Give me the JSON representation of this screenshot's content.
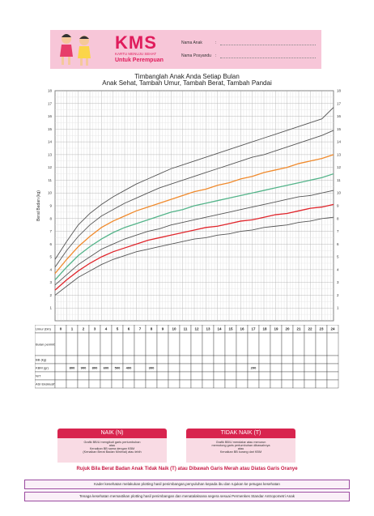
{
  "header": {
    "logo": "KMS",
    "logo_sub": "KARTU MENUJU SEHAT",
    "for_label": "Untuk Perempuan",
    "name_label": "Nama Anak",
    "parent_label": "Nama Posyandu",
    "colon": ":"
  },
  "titles": {
    "line1": "Timbanglah Anak Anda Setiap Bulan",
    "line2": "Anak Sehat, Tambah Umur, Tambah Berat, Tambah Pandai"
  },
  "chart_data": {
    "type": "line",
    "ylabel": "Berat Badan (kg)",
    "ylim": [
      0,
      18
    ],
    "yticks": [
      1,
      2,
      3,
      4,
      5,
      6,
      7,
      8,
      9,
      10,
      11,
      12,
      13,
      14,
      15,
      16,
      17,
      18
    ],
    "x": [
      0,
      1,
      2,
      3,
      4,
      5,
      6,
      7,
      8,
      9,
      10,
      11,
      12,
      13,
      14,
      15,
      16,
      17,
      18,
      19,
      20,
      21,
      22,
      23,
      24
    ],
    "grid": true,
    "series": [
      {
        "color": "#555555",
        "values": [
          4.8,
          6.2,
          7.5,
          8.4,
          9.1,
          9.7,
          10.2,
          10.7,
          11.1,
          11.5,
          11.9,
          12.2,
          12.5,
          12.8,
          13.1,
          13.4,
          13.7,
          14.0,
          14.3,
          14.6,
          14.9,
          15.2,
          15.5,
          15.8,
          16.7
        ]
      },
      {
        "color": "#555555",
        "values": [
          4.2,
          5.5,
          6.6,
          7.5,
          8.2,
          8.7,
          9.2,
          9.6,
          10.0,
          10.4,
          10.7,
          11.0,
          11.3,
          11.6,
          11.9,
          12.2,
          12.5,
          12.8,
          13.0,
          13.3,
          13.6,
          13.9,
          14.2,
          14.5,
          14.9
        ]
      },
      {
        "color": "#f08a2c",
        "values": [
          3.7,
          4.8,
          5.8,
          6.6,
          7.3,
          7.8,
          8.2,
          8.6,
          8.9,
          9.2,
          9.5,
          9.8,
          10.1,
          10.3,
          10.6,
          10.8,
          11.1,
          11.3,
          11.6,
          11.8,
          12.0,
          12.3,
          12.5,
          12.7,
          13.0
        ]
      },
      {
        "color": "#54b48a",
        "values": [
          3.2,
          4.2,
          5.1,
          5.8,
          6.4,
          6.9,
          7.3,
          7.6,
          7.9,
          8.2,
          8.5,
          8.7,
          9.0,
          9.2,
          9.4,
          9.6,
          9.8,
          10.0,
          10.2,
          10.4,
          10.6,
          10.8,
          11.0,
          11.2,
          11.5
        ]
      },
      {
        "color": "#555555",
        "values": [
          2.8,
          3.6,
          4.4,
          5.0,
          5.6,
          6.0,
          6.4,
          6.7,
          7.0,
          7.2,
          7.5,
          7.7,
          7.9,
          8.1,
          8.3,
          8.5,
          8.7,
          8.9,
          9.1,
          9.3,
          9.5,
          9.7,
          9.8,
          10.0,
          10.2
        ]
      },
      {
        "color": "#e0262c",
        "values": [
          2.4,
          3.2,
          3.9,
          4.5,
          5.0,
          5.4,
          5.7,
          6.0,
          6.3,
          6.5,
          6.7,
          6.9,
          7.1,
          7.3,
          7.4,
          7.6,
          7.8,
          7.9,
          8.1,
          8.3,
          8.4,
          8.6,
          8.8,
          8.9,
          9.1
        ]
      },
      {
        "color": "#555555",
        "values": [
          2.0,
          2.7,
          3.4,
          3.9,
          4.4,
          4.8,
          5.1,
          5.4,
          5.6,
          5.8,
          6.0,
          6.2,
          6.4,
          6.5,
          6.7,
          6.8,
          7.0,
          7.1,
          7.3,
          7.4,
          7.5,
          7.7,
          7.8,
          8.0,
          8.1
        ]
      }
    ]
  },
  "table": {
    "row_umur": "Umur (bln)",
    "row_bulan": "Bulan penimbangan",
    "row_bb": "BB (kg)",
    "row_kbm": "KBM (gr)",
    "row_nt": "N/T",
    "row_asi": "ASI Eksklusif",
    "months": [
      "0",
      "1",
      "2",
      "3",
      "4",
      "5",
      "6",
      "7",
      "8",
      "9",
      "10",
      "11",
      "12",
      "13",
      "14",
      "15",
      "16",
      "17",
      "18",
      "19",
      "20",
      "21",
      "22",
      "23",
      "24"
    ],
    "kbm": [
      "800",
      "900",
      "800",
      "600",
      "500",
      "400",
      "300",
      "200"
    ]
  },
  "naik": {
    "title": "NAIK (N)",
    "l1": "Grafik BB/U mengikuti garis pertumbuhan",
    "l2": "atau",
    "l3": "Kenaikan BB sama dengan KBM",
    "l4": "(Kenaikan Berat Badan Minimal) atau lebih"
  },
  "tidak_naik": {
    "title": "TIDAK NAIK (T)",
    "l1": "Grafik BB/U mendatar atau menurun",
    "l2": "memotong garis pertumbuhan dibawahnya",
    "l3": "atau",
    "l4": "Kenaikan BB kurang dari KBM"
  },
  "rujuk": "Rujuk Bila Berat Badan Anak Tidak Naik (T) atau Dibawah Garis Merah atau Diatas Garis Oranye",
  "notes": {
    "n1": "Kader kesehatan melakukan plotting hasil penimbangan,penyuluhan kepada ibu dan rujukan ke petugas kesehatan",
    "n2": "Tenaga kesehatan memastikan plotting hasil penimbangan dan menatalaksana segera sesuai Permenkes Standar Antropometri Anak"
  }
}
